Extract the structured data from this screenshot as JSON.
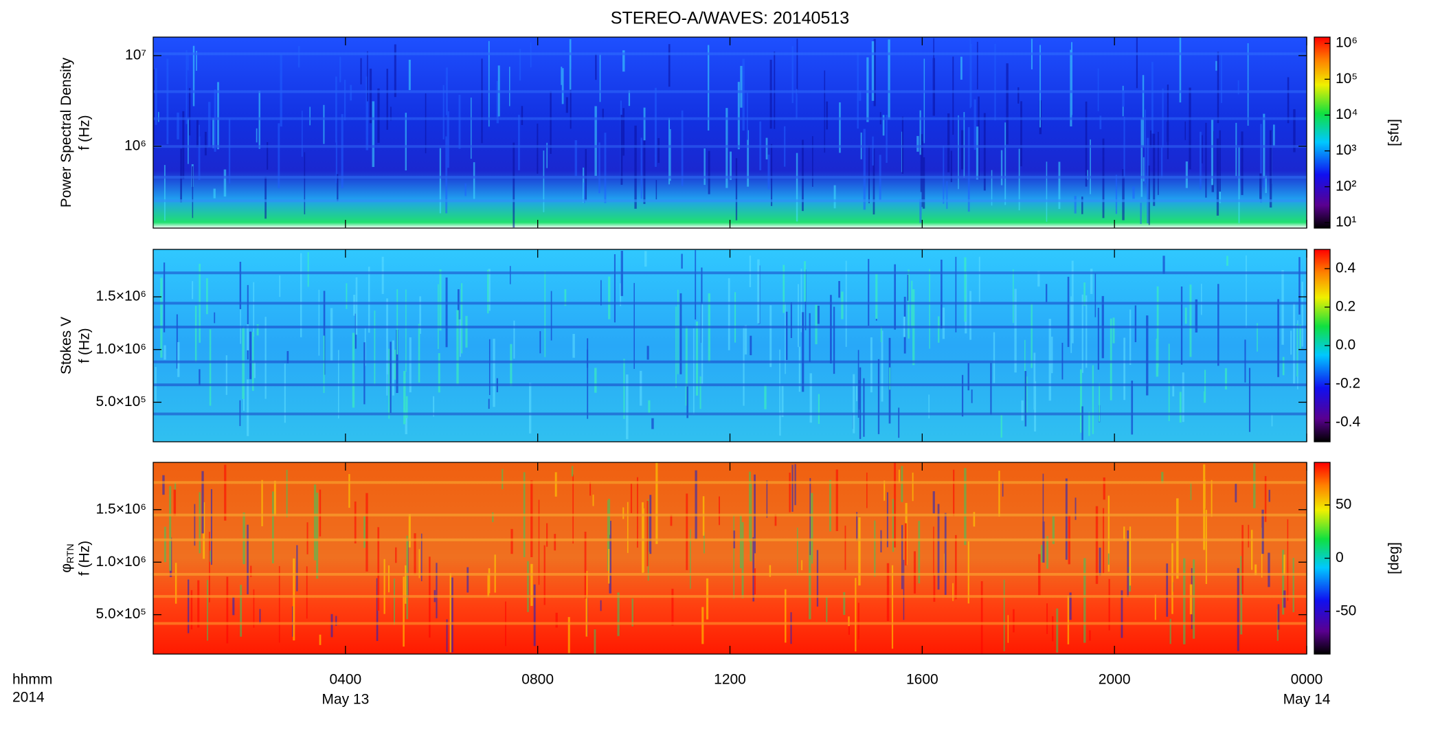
{
  "chart_data": [
    {
      "type": "heatmap",
      "title": "STEREO-A/WAVES: 20140513",
      "y_label": "Power Spectral Density",
      "y_label2": "f (Hz)",
      "ylog": true,
      "ylim": [
        125000,
        16000000
      ],
      "yticks": [
        {
          "value": 1000000,
          "label": "10⁶"
        },
        {
          "value": 10000000,
          "label": "10⁷"
        }
      ],
      "clog": true,
      "clim": [
        7,
        1500000
      ],
      "cticks": [
        {
          "value": 10,
          "label": "10¹"
        },
        {
          "value": 100,
          "label": "10²"
        },
        {
          "value": 1000,
          "label": "10³"
        },
        {
          "value": 10000,
          "label": "10⁴"
        },
        {
          "value": 100000,
          "label": "10⁵"
        },
        {
          "value": 1000000,
          "label": "10⁶"
        }
      ],
      "c_label": "[sfu]",
      "style": "psd"
    },
    {
      "type": "heatmap",
      "y_label": "Stokes V",
      "y_label2": "f (Hz)",
      "ylog": false,
      "ylim": [
        125000,
        1950000
      ],
      "yticks": [
        {
          "value": 500000,
          "label": "5.0×10⁵"
        },
        {
          "value": 1000000,
          "label": "1.0×10⁶"
        },
        {
          "value": 1500000,
          "label": "1.5×10⁶"
        }
      ],
      "clog": false,
      "clim": [
        -0.5,
        0.5
      ],
      "cticks": [
        -0.4,
        -0.2,
        {
          "value": 0,
          "label": "0.0"
        },
        0.2,
        0.4
      ],
      "style": "stokes"
    },
    {
      "type": "heatmap",
      "y_label": "φ",
      "y_label_sub": "RTN",
      "y_label2": "f (Hz)",
      "ylog": false,
      "ylim": [
        125000,
        1950000
      ],
      "yticks": [
        {
          "value": 500000,
          "label": "5.0×10⁵"
        },
        {
          "value": 1000000,
          "label": "1.0×10⁶"
        },
        {
          "value": 1500000,
          "label": "1.5×10⁶"
        }
      ],
      "clog": false,
      "clim": [
        -90,
        90
      ],
      "cticks": [
        -50,
        0,
        50
      ],
      "c_label": "[deg]",
      "style": "phase",
      "x_label": "hhmm",
      "x_label2": "2014",
      "xlim": [
        0,
        24
      ],
      "xticks": [
        {
          "value": 4,
          "label": "0400"
        },
        {
          "value": 8,
          "label": "0800"
        },
        {
          "value": 12,
          "label": "1200"
        },
        {
          "value": 16,
          "label": "1600"
        },
        {
          "value": 20,
          "label": "2000"
        },
        {
          "value": 24,
          "label": "0000"
        }
      ],
      "x_dates": [
        {
          "value": 4,
          "label": "May 13"
        },
        {
          "value": 24,
          "label": "May 14"
        }
      ]
    }
  ]
}
